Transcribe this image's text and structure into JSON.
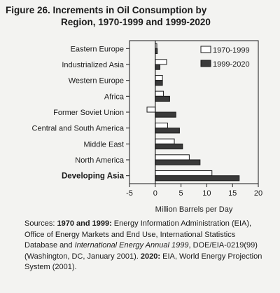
{
  "figure": {
    "title_line1": "Figure 26.  Increments in Oil Consumption by",
    "title_line2": "Region, 1970-1999 and 1999-2020"
  },
  "chart_data": {
    "type": "bar",
    "orientation": "horizontal",
    "categories": [
      "Eastern Europe",
      "Industrialized Asia",
      "Western Europe",
      "Africa",
      "Former Soviet Union",
      "Central and South America",
      "Middle East",
      "North America",
      "Developing Asia"
    ],
    "series": [
      {
        "name": "1970-1999",
        "color": "#ffffff",
        "values": [
          0.3,
          2.2,
          1.4,
          1.6,
          -1.6,
          2.4,
          3.7,
          6.6,
          11.0
        ]
      },
      {
        "name": "1999-2020",
        "color": "#3a3a3a",
        "values": [
          0.4,
          0.9,
          1.4,
          2.8,
          4.0,
          4.7,
          5.3,
          8.7,
          16.3
        ]
      }
    ],
    "xlabel": "Million Barrels per Day",
    "xlim": [
      -5,
      20
    ],
    "xticks": [
      "-5",
      "0",
      "5",
      "10",
      "15",
      "20"
    ],
    "legend_position": "top-right",
    "grid": false
  },
  "sources": {
    "prefix": "Sources: ",
    "label1": "1970 and 1999:",
    "text1": " Energy Information Administration (EIA), Office of Energy Markets and End Use, International Statistics Database and ",
    "pub": "International Energy Annual 1999",
    "text2": ", DOE/EIA-0219(99) (Washington, DC, January 2001). ",
    "label2": "2020:",
    "text3": " EIA, World Energy Projection System (2001)."
  }
}
